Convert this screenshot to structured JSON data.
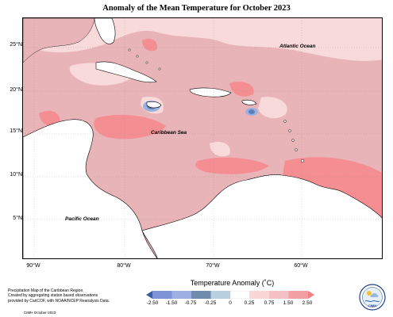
{
  "title": "Anomaly of the Mean Temperature for October 2023",
  "map": {
    "lat_labels": [
      "25°N",
      "20°N",
      "15°N",
      "10°N",
      "5°N"
    ],
    "lon_labels": [
      "90°W",
      "80°W",
      "70°W",
      "60°W"
    ],
    "ocean_labels": {
      "atlantic": "Atlantic Ocean",
      "caribbean": "Caribbean Sea",
      "pacific": "Pacific Ocean"
    },
    "fill_colors": {
      "background_anomaly": "#e9b4b8",
      "light_anomaly": "#f9dadb",
      "strong_anomaly": "#f48e93",
      "very_strong_anomaly": "#f3797f",
      "negative_anomaly": "#5b80b5",
      "land": "#ffffff"
    }
  },
  "legend": {
    "title": "Temperature Anomaly (˚C)",
    "ticks": [
      "-2.50",
      "-1.50",
      "-0.75",
      "-0.25",
      "0",
      "0.25",
      "0.75",
      "1.50",
      "2.50"
    ],
    "colors": [
      "#3c5c9c",
      "#7e92d6",
      "#9db0e2",
      "#6f8bae",
      "#b8cfe0",
      "#ffffff",
      "#fbd6d7",
      "#f5c0c3",
      "#f3a0a5",
      "#f47f86"
    ]
  },
  "footer": {
    "note_line1": "Precipitation Map of the Caribbean Region.",
    "note_line2": "Created by aggregating station based observations",
    "note_line3": "provided by CariCOF, with NOAA/NCEP Reanalysis Data.",
    "copyright": "CIMH October-2023"
  },
  "logo": {
    "text": "CIMH"
  }
}
